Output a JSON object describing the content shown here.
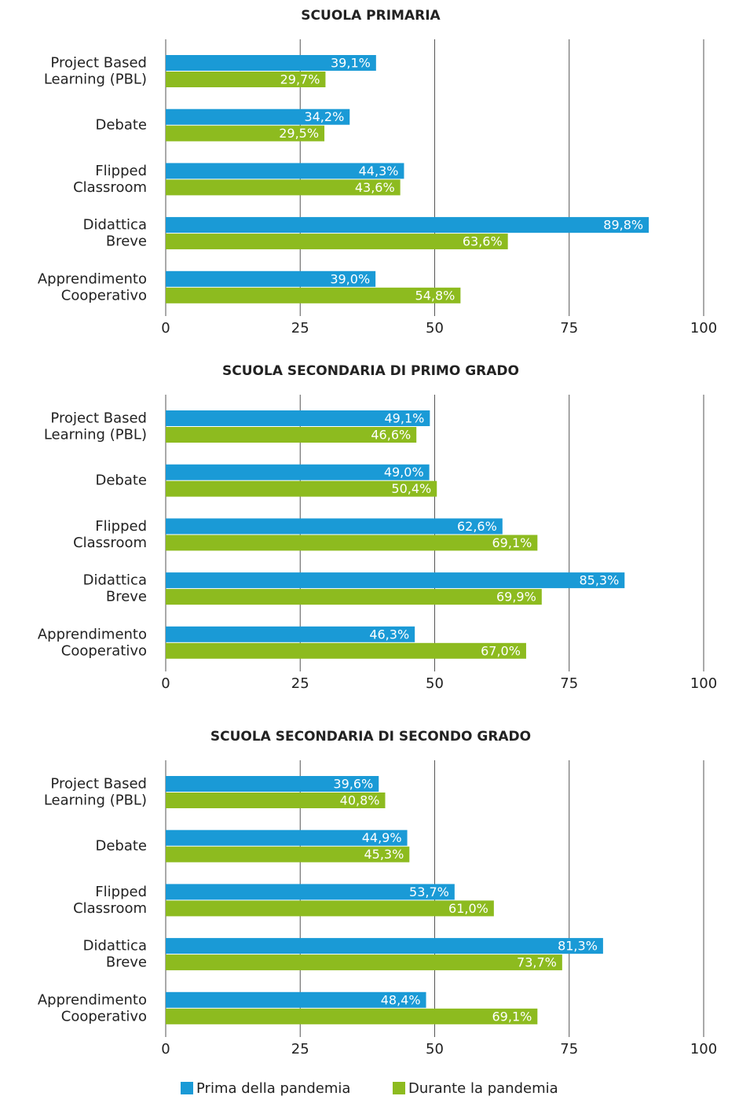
{
  "chart_data": [
    {
      "type": "bar",
      "orientation": "horizontal",
      "title": "SCUOLA PRIMARIA",
      "categories": [
        "Project Based\nLearning (PBL)",
        "Debate",
        "Flipped\nClassroom",
        "Didattica\nBreve",
        "Apprendimento\nCooperativo"
      ],
      "series": [
        {
          "name": "Prima della pandemia",
          "color": "#1a9ad6",
          "values": [
            39.1,
            34.2,
            44.3,
            89.8,
            39.0
          ],
          "value_labels": [
            "39,1%",
            "34,2%",
            "44,3%",
            "89,8%",
            "39,0%"
          ]
        },
        {
          "name": "Durante la pandemia",
          "color": "#8dbb1f",
          "values": [
            29.7,
            29.5,
            43.6,
            63.6,
            54.8
          ],
          "value_labels": [
            "29,7%",
            "29,5%",
            "43,6%",
            "63,6%",
            "54,8%"
          ]
        }
      ],
      "xlim": [
        0,
        100
      ],
      "xticks": [
        0,
        25,
        50,
        75,
        100
      ],
      "grid": true
    },
    {
      "type": "bar",
      "orientation": "horizontal",
      "title": "SCUOLA SECONDARIA DI PRIMO GRADO",
      "categories": [
        "Project Based\nLearning (PBL)",
        "Debate",
        "Flipped\nClassroom",
        "Didattica\nBreve",
        "Apprendimento\nCooperativo"
      ],
      "series": [
        {
          "name": "Prima della pandemia",
          "color": "#1a9ad6",
          "values": [
            49.1,
            49.0,
            62.6,
            85.3,
            46.3
          ],
          "value_labels": [
            "49,1%",
            "49,0%",
            "62,6%",
            "85,3%",
            "46,3%"
          ]
        },
        {
          "name": "Durante la pandemia",
          "color": "#8dbb1f",
          "values": [
            46.6,
            50.4,
            69.1,
            69.9,
            67.0
          ],
          "value_labels": [
            "46,6%",
            "50,4%",
            "69,1%",
            "69,9%",
            "67,0%"
          ]
        }
      ],
      "xlim": [
        0,
        100
      ],
      "xticks": [
        0,
        25,
        50,
        75,
        100
      ],
      "grid": true
    },
    {
      "type": "bar",
      "orientation": "horizontal",
      "title": "SCUOLA SECONDARIA DI SECONDO GRADO",
      "categories": [
        "Project Based\nLearning (PBL)",
        "Debate",
        "Flipped\nClassroom",
        "Didattica\nBreve",
        "Apprendimento\nCooperativo"
      ],
      "series": [
        {
          "name": "Prima della pandemia",
          "color": "#1a9ad6",
          "values": [
            39.6,
            44.9,
            53.7,
            81.3,
            48.4
          ],
          "value_labels": [
            "39,6%",
            "44,9%",
            "53,7%",
            "81,3%",
            "48,4%"
          ]
        },
        {
          "name": "Durante la pandemia",
          "color": "#8dbb1f",
          "values": [
            40.8,
            45.3,
            61.0,
            73.7,
            69.1
          ],
          "value_labels": [
            "40,8%",
            "45,3%",
            "61,0%",
            "73,7%",
            "69,1%"
          ]
        }
      ],
      "xlim": [
        0,
        100
      ],
      "xticks": [
        0,
        25,
        50,
        75,
        100
      ],
      "grid": true
    }
  ]
}
